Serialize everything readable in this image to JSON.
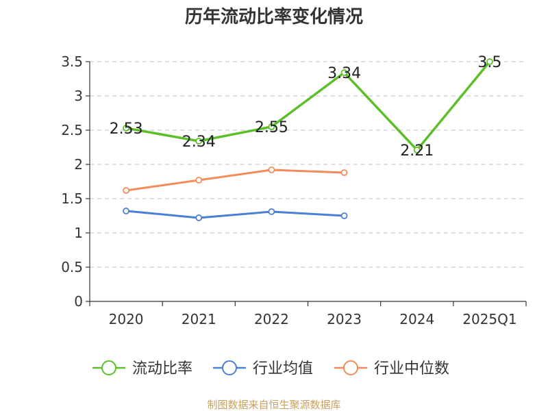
{
  "chart_data": {
    "type": "line",
    "title": "历年流动比率变化情况",
    "categories": [
      "2020",
      "2021",
      "2022",
      "2023",
      "2024",
      "2025Q1"
    ],
    "ylim": [
      0,
      3.5
    ],
    "yticks": [
      "0",
      "0.5",
      "1",
      "1.5",
      "2",
      "2.5",
      "3",
      "3.5"
    ],
    "grid": true,
    "legend_position": "bottom",
    "series": [
      {
        "name": "流动比率",
        "color": "#5cbf2a",
        "values": [
          2.53,
          2.34,
          2.55,
          3.34,
          2.21,
          3.5
        ],
        "labels": [
          "2.53",
          "2.34",
          "2.55",
          "3.34",
          "2.21",
          "3.5"
        ]
      },
      {
        "name": "行业均值",
        "color": "#4a7fd6",
        "values": [
          1.32,
          1.22,
          1.31,
          1.25,
          null,
          null
        ]
      },
      {
        "name": "行业中位数",
        "color": "#f28c5a",
        "values": [
          1.62,
          1.77,
          1.92,
          1.88,
          null,
          null
        ]
      }
    ]
  },
  "source": "制图数据来自恒生聚源数据库"
}
